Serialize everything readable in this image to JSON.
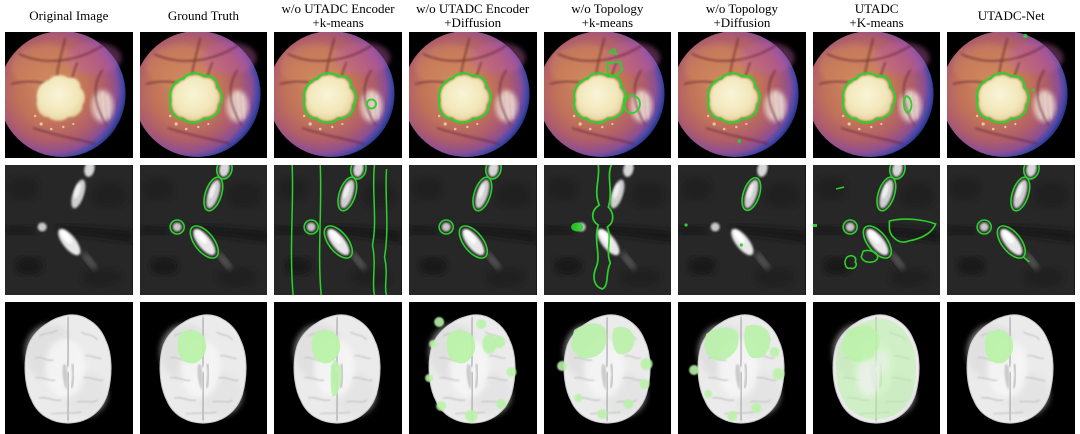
{
  "columns": [
    {
      "line1": "Original Image",
      "line2": ""
    },
    {
      "line1": "Ground Truth",
      "line2": ""
    },
    {
      "line1": "w/o UTADC Encoder",
      "line2": "+k-means"
    },
    {
      "line1": "w/o UTADC Encoder",
      "line2": "+Diffusion"
    },
    {
      "line1": "w/o Topology",
      "line2": "+k-means"
    },
    {
      "line1": "w/o Topology",
      "line2": "+Diffusion"
    },
    {
      "line1": "UTADC",
      "line2": "+K-means"
    },
    {
      "line1": "UTADC-Net",
      "line2": ""
    }
  ],
  "rows": [
    {
      "name": "fundus",
      "overlays": [
        "none",
        "gt",
        "gt disc-spot",
        "gt",
        "gt top-box right-blob",
        "gt bottom-dot",
        "gt right-crescent",
        "gt top-dot right-dot"
      ]
    },
    {
      "name": "vessel",
      "overlays": [
        "none",
        "blobs",
        "blobs vlines",
        "blobs",
        "wind blob-fill",
        "top-only dots",
        "blobs extras",
        "blobs tick"
      ]
    },
    {
      "name": "brain",
      "overlays": [
        "none",
        "gt",
        "gt central",
        "gt scatter",
        "top-band",
        "top-band2",
        "full",
        "gt"
      ]
    }
  ],
  "colors": {
    "contour_green": "#2bd22b",
    "mask_green": "#b9f2a8",
    "figure_background": "#ffffff",
    "panel_background": "#000000"
  }
}
